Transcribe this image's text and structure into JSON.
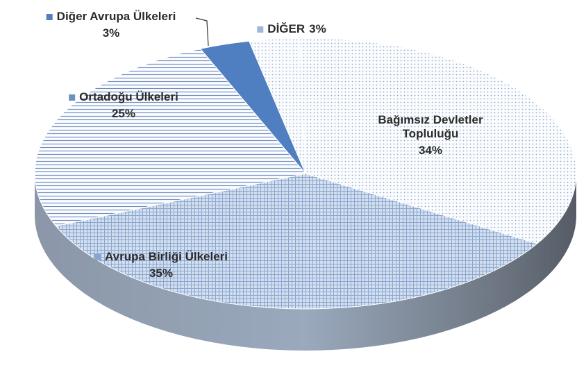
{
  "chart_data": {
    "type": "pie",
    "categories": [
      "DİĞER",
      "Bağımsız Devletler Topluluğu",
      "Avrupa Birliği Ülkeleri",
      "Ortadoğu Ülkeleri",
      "Diğer Avrupa Ülkeleri"
    ],
    "values": [
      3,
      34,
      35,
      25,
      3
    ],
    "value_labels": [
      "3%",
      "34%",
      "35%",
      "25%",
      "3%"
    ],
    "colors": [
      "#9fb6d8",
      "#8fa9cf",
      "#8aa6cf",
      "#6f8fc0",
      "#4f7fc0"
    ],
    "patterns": [
      "dots",
      "dots",
      "grid",
      "hlines",
      "solid"
    ]
  }
}
